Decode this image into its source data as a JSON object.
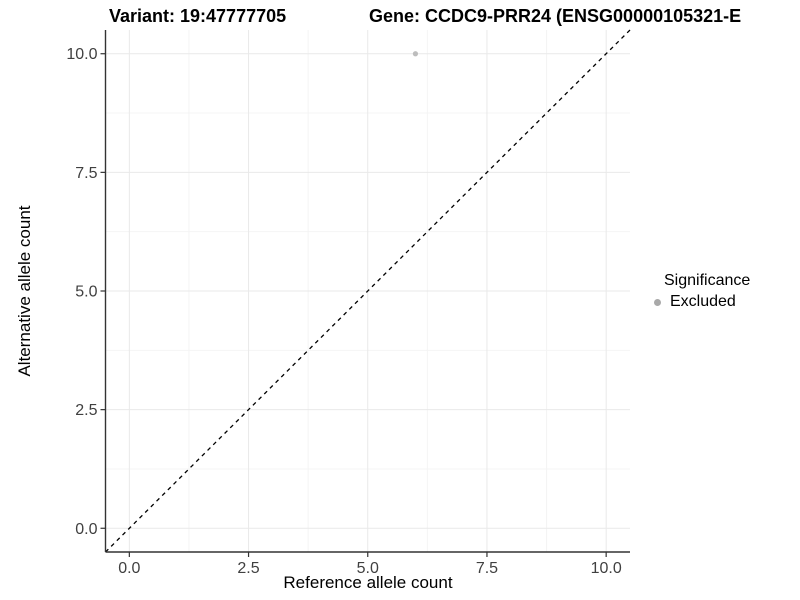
{
  "titles": {
    "variant": "Variant: 19:47777705",
    "gene": "Gene: CCDC9-PRR24 (ENSG00000105321-E"
  },
  "axes": {
    "x_label": "Reference allele count",
    "y_label": "Alternative allele count"
  },
  "legend": {
    "title": "Significance",
    "items": [
      {
        "label": "Excluded",
        "color": "#a9a9a9"
      }
    ]
  },
  "colors": {
    "background": "#ffffff",
    "grid_major": "#e9e9e9",
    "grid_minor": "#f4f4f4",
    "axis_line": "#333333",
    "tick_label": "#404040",
    "reference_line": "#000000"
  },
  "chart_data": {
    "type": "scatter",
    "title": "Variant: 19:47777705    Gene: CCDC9-PRR24 (ENSG00000105321-E",
    "xlabel": "Reference allele count",
    "ylabel": "Alternative allele count",
    "xlim": [
      -0.5,
      10.5
    ],
    "ylim": [
      -0.5,
      10.5
    ],
    "x_ticks": [
      0,
      2.5,
      5,
      7.5,
      10
    ],
    "y_ticks": [
      0,
      2.5,
      5,
      7.5,
      10
    ],
    "x_tick_labels": [
      "0.0",
      "2.5",
      "5.0",
      "7.5",
      "10.0"
    ],
    "y_tick_labels": [
      "0.0",
      "2.5",
      "5.0",
      "7.5",
      "10.0"
    ],
    "grid": "major+minor",
    "legend_position": "right",
    "series": [
      {
        "name": "Excluded",
        "color": "#bdbdbd",
        "points": [
          {
            "x": 6,
            "y": 10
          }
        ]
      }
    ],
    "reference_line": {
      "style": "dashed",
      "equation": "y = x",
      "from": [
        -0.5,
        -0.5
      ],
      "to": [
        10.5,
        10.5
      ]
    }
  }
}
